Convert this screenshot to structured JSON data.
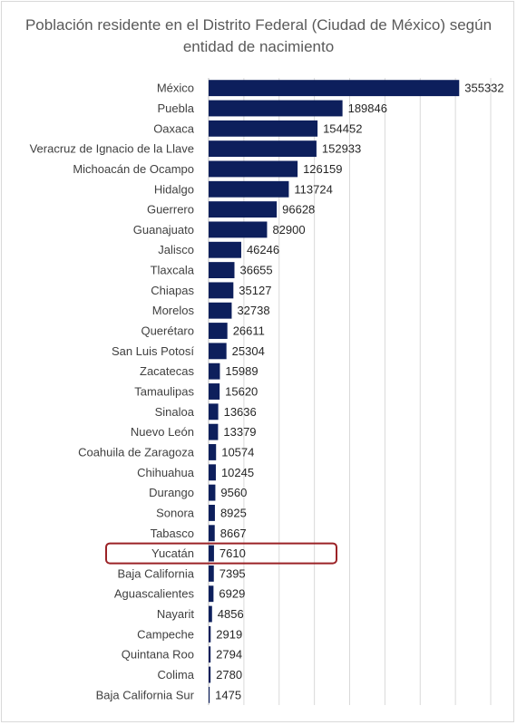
{
  "chart_data": {
    "type": "bar",
    "orientation": "horizontal",
    "title": "Población residente en el Distrito Federal (Ciudad de México) según entidad de nacimiento",
    "categories": [
      "México",
      "Puebla",
      "Oaxaca",
      "Veracruz de Ignacio de la Llave",
      "Michoacán de Ocampo",
      "Hidalgo",
      "Guerrero",
      "Guanajuato",
      "Jalisco",
      "Tlaxcala",
      "Chiapas",
      "Morelos",
      "Querétaro",
      "San Luis Potosí",
      "Zacatecas",
      "Tamaulipas",
      "Sinaloa",
      "Nuevo León",
      "Coahuila de Zaragoza",
      "Chihuahua",
      "Durango",
      "Sonora",
      "Tabasco",
      "Yucatán",
      "Baja California",
      "Aguascalientes",
      "Nayarit",
      "Campeche",
      "Quintana Roo",
      "Colima",
      "Baja California Sur"
    ],
    "values": [
      355332,
      189846,
      154452,
      152933,
      126159,
      113724,
      96628,
      82900,
      46246,
      36655,
      35127,
      32738,
      26611,
      25304,
      15989,
      15620,
      13636,
      13379,
      10574,
      10245,
      9560,
      8925,
      8667,
      7610,
      7395,
      6929,
      4856,
      2919,
      2794,
      2780,
      1475
    ],
    "xlim": [
      0,
      400000
    ],
    "grid": true,
    "highlight": "Yucatán",
    "colors": {
      "bar": "#0d1f5c",
      "highlight_box": "#9b2226",
      "grid": "#d9d9d9"
    }
  }
}
